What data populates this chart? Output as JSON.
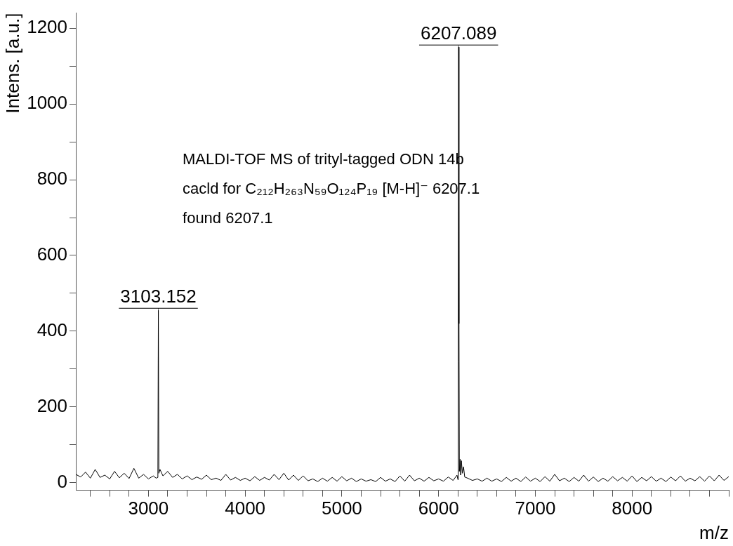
{
  "chart_data": {
    "type": "line",
    "xlabel": "m/z",
    "ylabel": "Intens. [a.u.]",
    "xlim": [
      2250,
      9000
    ],
    "ylim": [
      -20,
      1240
    ],
    "xticks": [
      {
        "value": 2400,
        "label": null
      },
      {
        "value": 2600,
        "label": null
      },
      {
        "value": 2800,
        "label": null
      },
      3000,
      {
        "value": 3200,
        "label": null
      },
      {
        "value": 3400,
        "label": null
      },
      {
        "value": 3600,
        "label": null
      },
      {
        "value": 3800,
        "label": null
      },
      4000,
      {
        "value": 4200,
        "label": null
      },
      {
        "value": 4400,
        "label": null
      },
      {
        "value": 4600,
        "label": null
      },
      {
        "value": 4800,
        "label": null
      },
      5000,
      {
        "value": 5200,
        "label": null
      },
      {
        "value": 5400,
        "label": null
      },
      {
        "value": 5600,
        "label": null
      },
      {
        "value": 5800,
        "label": null
      },
      6000,
      {
        "value": 6200,
        "label": null
      },
      {
        "value": 6400,
        "label": null
      },
      {
        "value": 6600,
        "label": null
      },
      {
        "value": 6800,
        "label": null
      },
      7000,
      {
        "value": 7200,
        "label": null
      },
      {
        "value": 7400,
        "label": null
      },
      {
        "value": 7600,
        "label": null
      },
      {
        "value": 7800,
        "label": null
      },
      8000,
      {
        "value": 8200,
        "label": null
      },
      {
        "value": 8400,
        "label": null
      },
      {
        "value": 8600,
        "label": null
      },
      {
        "value": 8800,
        "label": null
      },
      {
        "value": 9000,
        "label": null
      }
    ],
    "yticks": [
      0,
      {
        "value": 100,
        "label": null
      },
      200,
      {
        "value": 300,
        "label": null
      },
      400,
      {
        "value": 500,
        "label": null
      },
      600,
      {
        "value": 700,
        "label": null
      },
      800,
      {
        "value": 900,
        "label": null
      },
      1000,
      {
        "value": 1100,
        "label": null
      },
      1200
    ],
    "grid": false,
    "legend": false,
    "marker": "none",
    "line_style": "solid",
    "series": [
      {
        "color": "#000000",
        "x": [
          2250,
          2300,
          2350,
          2400,
          2450,
          2500,
          2550,
          2600,
          2650,
          2700,
          2750,
          2800,
          2850,
          2900,
          2950,
          3000,
          3050,
          3080,
          3098,
          3103,
          3108,
          3120,
          3150,
          3200,
          3250,
          3300,
          3350,
          3400,
          3450,
          3500,
          3550,
          3600,
          3650,
          3700,
          3750,
          3800,
          3850,
          3900,
          3950,
          4000,
          4050,
          4100,
          4150,
          4200,
          4250,
          4300,
          4350,
          4400,
          4450,
          4500,
          4550,
          4600,
          4650,
          4700,
          4750,
          4800,
          4850,
          4900,
          4950,
          5000,
          5050,
          5100,
          5150,
          5200,
          5250,
          5300,
          5350,
          5400,
          5450,
          5500,
          5550,
          5600,
          5650,
          5700,
          5750,
          5800,
          5850,
          5900,
          5950,
          6000,
          6050,
          6100,
          6150,
          6190,
          6200,
          6203,
          6207,
          6211,
          6215,
          6222,
          6228,
          6236,
          6245,
          6258,
          6270,
          6300,
          6350,
          6400,
          6450,
          6500,
          6550,
          6600,
          6650,
          6700,
          6750,
          6800,
          6850,
          6900,
          6950,
          7000,
          7050,
          7100,
          7150,
          7200,
          7250,
          7300,
          7350,
          7400,
          7450,
          7500,
          7550,
          7600,
          7650,
          7700,
          7750,
          7800,
          7850,
          7900,
          7950,
          8000,
          8050,
          8100,
          8150,
          8200,
          8250,
          8300,
          8350,
          8400,
          8450,
          8500,
          8550,
          8600,
          8650,
          8700,
          8750,
          8800,
          8850,
          8900,
          8950,
          9000
        ],
        "values": [
          22,
          15,
          28,
          12,
          35,
          14,
          20,
          10,
          30,
          13,
          25,
          11,
          38,
          12,
          22,
          10,
          18,
          12,
          14,
          455,
          25,
          35,
          18,
          30,
          14,
          22,
          10,
          18,
          8,
          15,
          9,
          20,
          8,
          12,
          6,
          22,
          7,
          14,
          6,
          12,
          5,
          16,
          6,
          14,
          7,
          22,
          8,
          25,
          7,
          20,
          6,
          18,
          5,
          10,
          3,
          12,
          4,
          14,
          4,
          16,
          5,
          12,
          3,
          10,
          4,
          8,
          3,
          14,
          4,
          10,
          3,
          18,
          4,
          20,
          5,
          12,
          4,
          14,
          5,
          10,
          4,
          15,
          6,
          20,
          8,
          320,
          1150,
          420,
          30,
          62,
          20,
          58,
          25,
          42,
          15,
          12,
          6,
          10,
          4,
          12,
          4,
          10,
          3,
          14,
          4,
          12,
          3,
          15,
          4,
          12,
          3,
          16,
          4,
          22,
          5,
          12,
          3,
          14,
          4,
          20,
          4,
          15,
          3,
          12,
          4,
          16,
          5,
          14,
          4,
          18,
          3,
          14,
          5,
          16,
          4,
          12,
          3,
          15,
          5,
          18,
          4,
          12,
          5,
          16,
          4,
          18,
          5,
          20,
          6,
          16
        ]
      }
    ],
    "annotations": [
      {
        "text": "3103.152",
        "x": 3103,
        "y": 455
      },
      {
        "text": "6207.089",
        "x": 6207,
        "y": 1150
      },
      "MALDI-TOF MS of trityl-tagged ODN 14b",
      "cacld for C₂₁₂H₂₆₃N₅₉O₁₂₄P₁₉ [M-H]⁻ 6207.1",
      "found 6207.1"
    ]
  }
}
